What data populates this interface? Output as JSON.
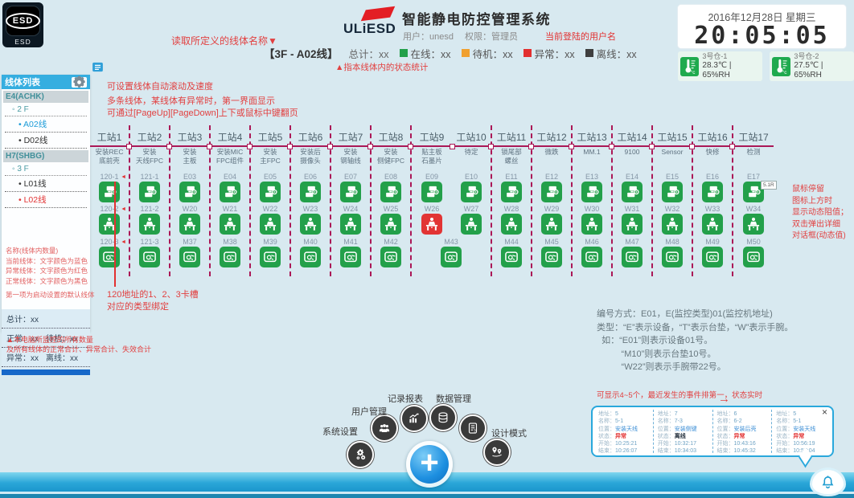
{
  "app": {
    "logo_text": "ESD",
    "logo_caption": "ESD",
    "brand": "ULiESD",
    "title": "智能静电防控管理系统",
    "user_label": "用户：unesd",
    "perm_label": "权限：管理员",
    "user_note": "当前登陆的用户名"
  },
  "clock": {
    "date": "2016年12月28日 星期三",
    "time": "20:05:05"
  },
  "sensors": {
    "icon": "thermometer",
    "items": [
      {
        "name": "3号仓-1",
        "reading": "28.3℃ | 65%RH"
      },
      {
        "name": "3号仓-2",
        "reading": "27.5℃ | 65%RH"
      }
    ]
  },
  "status_bar": {
    "line_label": "【3F - A02线】",
    "total": "总计：xx",
    "items": [
      {
        "label": "在线：xx",
        "color": "#23a04a"
      },
      {
        "label": "待机：xx",
        "color": "#f0a030"
      },
      {
        "label": "异常：xx",
        "color": "#e23030"
      },
      {
        "label": "离线：xx",
        "color": "#3f3f3f"
      }
    ],
    "note": "▲指本线体内的状态统计"
  },
  "annotations": {
    "line_name": "读取所定义的线体名称▼",
    "scroll": "可设置线体自动滚动及速度",
    "multi": "多条线体，某线体有异常时，第一界面显示\n可通过[PageUp][PageDown]上下或鼠标中键翻页",
    "slot": "120地址的1、2、3卡槽\n对应的类型绑定",
    "hover": "鼠标停留\n图标上方时\n显示动态阻值；\n双击弹出详细\n对话框(动态值)",
    "hover_tip_value": "5.1R",
    "events": "可显示4~5个，最近发生的事件排第一，状态实时",
    "events_arrow": "→"
  },
  "sidebar": {
    "title": "线体列表",
    "list_icon": "list",
    "settings_icon": "gear-small",
    "tree": [
      {
        "type": "group",
        "label": "E4(ACHK)"
      },
      {
        "type": "floor",
        "label": "2 F"
      },
      {
        "type": "line current",
        "label": "A02线"
      },
      {
        "type": "line",
        "label": "D02线"
      },
      {
        "type": "group",
        "label": "H7(SHBG)"
      },
      {
        "type": "floor",
        "label": "3 F"
      },
      {
        "type": "line",
        "label": "L01线"
      },
      {
        "type": "line alarm",
        "label": "L02线"
      }
    ],
    "legend": [
      "名称(线体内数量)",
      "当前线体：文字颜色为蓝色",
      "异常线体：文字颜色为红色",
      "正常线体：文字颜色为黑色",
      "第一项为启动设置的默认线体"
    ],
    "stats": {
      "total": "总计：xx",
      "normal": "正常：xx",
      "standby": "待机：xx",
      "abnormal": "异常：xx",
      "offline": "离线：xx"
    },
    "note1": "▲本电脑所监控的所有数量",
    "note2": "及所有线体的正常合计、异常合计、失效合计"
  },
  "stations": {
    "row_icons": {
      "e": "equipment-monitor",
      "w": "wrist-strap-monitor",
      "m": "mat-monitor"
    },
    "columns": [
      {
        "name": "工站1",
        "process": "安装REC\n底前壳",
        "e": "120-1",
        "w": "120-2",
        "m": "120-3",
        "arrow": "◄",
        "arrow2": "◄",
        "arrow3": "◄"
      },
      {
        "name": "工站2",
        "process": "安装\n天线FPC",
        "e": "121-1",
        "w": "121-2",
        "m": "121-3"
      },
      {
        "name": "工站3",
        "process": "安装\n主板",
        "e": "E03",
        "w": "W20",
        "m": "M37"
      },
      {
        "name": "工站4",
        "process": "安装MIC\nFPC组件",
        "e": "E04",
        "w": "W21",
        "m": "M38"
      },
      {
        "name": "工站5",
        "process": "安装\n主FPC",
        "e": "E05",
        "w": "W22",
        "m": "M39"
      },
      {
        "name": "工站6",
        "process": "安装后\n摄像头",
        "e": "E06",
        "w": "W23",
        "m": "M40"
      },
      {
        "name": "工站7",
        "process": "安装\n钢轴线",
        "e": "E07",
        "w": "W24",
        "m": "M41"
      },
      {
        "name": "工站8",
        "process": "安装\n侧健FPC",
        "e": "E08",
        "w": "W25",
        "m": "M42"
      },
      {
        "name": "工站9",
        "process": "贴主板\n石墨片",
        "e": "E09",
        "w": "W26",
        "w_cls": "alarm",
        "m": "",
        "cls": "no-divider no-mat"
      },
      {
        "name": "工站10",
        "process": "待定",
        "e": "E10",
        "w": "W27",
        "m": "M43",
        "cls": "mat-shift"
      },
      {
        "name": "工站11",
        "process": "锁尾部\n螺丝",
        "e": "E11",
        "w": "W28",
        "m": "M44"
      },
      {
        "name": "工站12",
        "process": "微跌",
        "e": "E12",
        "w": "W29",
        "m": "M45"
      },
      {
        "name": "工站13",
        "process": "MM.1",
        "e": "E13",
        "w": "W30",
        "m": "M46"
      },
      {
        "name": "工站14",
        "process": "9100",
        "e": "E14",
        "w": "W31",
        "m": "M47"
      },
      {
        "name": "工站15",
        "process": "Sensor",
        "e": "E15",
        "w": "W32",
        "m": "M48"
      },
      {
        "name": "工站16",
        "process": "快修",
        "e": "E16",
        "w": "W33",
        "m": "M49"
      },
      {
        "name": "工站17",
        "process": "检测",
        "e": "E17",
        "w": "W34",
        "m": "M50"
      }
    ]
  },
  "numbering": [
    "编号方式：E01，E(监控类型)01(监控机地址)",
    "类型：“E”表示设备，“T”表示台垫，“W”表示手腕。",
    "  如：“E01”则表示设备01号。",
    "          “M10”则表示台垫10号。",
    "          “W22”则表示手腕带22号。"
  ],
  "menu": {
    "plus_label": "+",
    "buttons": [
      {
        "label": "系统设置",
        "icon": "gears"
      },
      {
        "label": "用户管理",
        "icon": "users"
      },
      {
        "label": "记录报表",
        "icon": "chart"
      },
      {
        "label": "数据管理",
        "icon": "database"
      },
      {
        "label": "",
        "icon": "document"
      },
      {
        "label": "设计模式",
        "icon": "pins"
      }
    ]
  },
  "events_panel": {
    "close": "×",
    "labels": {
      "addr": "地址",
      "name": "名称",
      "pos": "位置",
      "state": "状态",
      "start": "开始",
      "end": "结束"
    },
    "entries": [
      {
        "addr": "5",
        "name": "5-1",
        "pos": "安装天线",
        "state": "异常",
        "state_cls": "alarm",
        "start": "10:25:21",
        "end": "10:26:07"
      },
      {
        "addr": "7",
        "name": "7-3",
        "pos": "安装侧键",
        "state": "离线",
        "state_cls": "offline",
        "start": "10:32:17",
        "end": "10:34:03"
      },
      {
        "addr": "6",
        "name": "6-2",
        "pos": "安装后壳",
        "state": "异常",
        "state_cls": "alarm",
        "start": "10:43:16",
        "end": "10:45:32"
      },
      {
        "addr": "5",
        "name": "5-1",
        "pos": "安装天线",
        "state": "异常",
        "state_cls": "alarm",
        "start": "10:56:19",
        "end": "10:57:04"
      }
    ]
  },
  "bottom": {
    "bell_icon": "bell"
  }
}
